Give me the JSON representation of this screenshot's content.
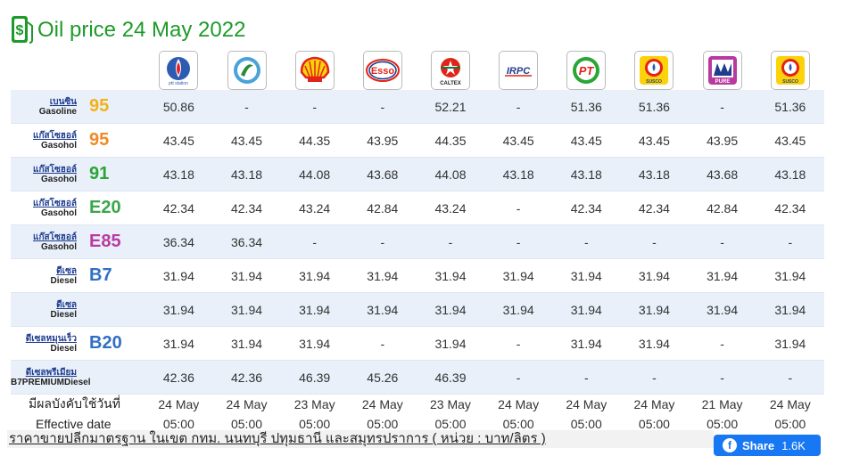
{
  "title": "Oil price 24 May 2022",
  "brands": [
    {
      "name": "ptt",
      "caption": "ptt station"
    },
    {
      "name": "bangchak",
      "caption": ""
    },
    {
      "name": "shell",
      "caption": ""
    },
    {
      "name": "esso",
      "caption": "Esso"
    },
    {
      "name": "caltex",
      "caption": "CALTEX"
    },
    {
      "name": "irpc",
      "caption": "IRPC"
    },
    {
      "name": "pt",
      "caption": "PT"
    },
    {
      "name": "susco",
      "caption": "SUSCO"
    },
    {
      "name": "pure",
      "caption": "PURE"
    },
    {
      "name": "susco-dealers",
      "caption": "SUSCO"
    }
  ],
  "fuels": [
    {
      "thai": "เบนซิน",
      "eng": "Gasoline",
      "grade": "95",
      "grade_color": "#f2b21a",
      "prices": [
        "50.86",
        "-",
        "-",
        "-",
        "52.21",
        "-",
        "51.36",
        "51.36",
        "-",
        "51.36"
      ]
    },
    {
      "thai": "แก๊สโซฮอล์",
      "eng": "Gasohol",
      "grade": "95",
      "grade_color": "#f08a26",
      "prices": [
        "43.45",
        "43.45",
        "44.35",
        "43.95",
        "44.35",
        "43.45",
        "43.45",
        "43.45",
        "43.95",
        "43.45"
      ]
    },
    {
      "thai": "แก๊สโซฮอล์",
      "eng": "Gasohol",
      "grade": "91",
      "grade_color": "#2aa536",
      "prices": [
        "43.18",
        "43.18",
        "44.08",
        "43.68",
        "44.08",
        "43.18",
        "43.18",
        "43.18",
        "43.68",
        "43.18"
      ]
    },
    {
      "thai": "แก๊สโซฮอล์",
      "eng": "Gasohol",
      "grade": "E20",
      "grade_color": "#3aa64a",
      "prices": [
        "42.34",
        "42.34",
        "43.24",
        "42.84",
        "43.24",
        "-",
        "42.34",
        "42.34",
        "42.84",
        "42.34"
      ]
    },
    {
      "thai": "แก๊สโซฮอล์",
      "eng": "Gasohol",
      "grade": "E85",
      "grade_color": "#b83aa1",
      "prices": [
        "36.34",
        "36.34",
        "-",
        "-",
        "-",
        "-",
        "-",
        "-",
        "-",
        "-"
      ]
    },
    {
      "thai": "ดีเซล",
      "eng": "Diesel",
      "grade": "B7",
      "grade_color": "#2f6fc4",
      "prices": [
        "31.94",
        "31.94",
        "31.94",
        "31.94",
        "31.94",
        "31.94",
        "31.94",
        "31.94",
        "31.94",
        "31.94"
      ]
    },
    {
      "thai": "ดีเซล",
      "eng": "Diesel",
      "grade": "",
      "grade_color": "#2f6fc4",
      "prices": [
        "31.94",
        "31.94",
        "31.94",
        "31.94",
        "31.94",
        "31.94",
        "31.94",
        "31.94",
        "31.94",
        "31.94"
      ]
    },
    {
      "thai": "ดีเซลหมุนเร็ว",
      "eng": "Diesel",
      "grade": "B20",
      "grade_color": "#2f6fc4",
      "prices": [
        "31.94",
        "31.94",
        "31.94",
        "-",
        "31.94",
        "-",
        "31.94",
        "31.94",
        "-",
        "31.94"
      ]
    },
    {
      "thai": "ดีเซลพรีเมียม",
      "eng": "B7PREMIUMDiesel",
      "grade": "",
      "grade_color": "#2f6fc4",
      "prices": [
        "42.36",
        "42.36",
        "46.39",
        "45.26",
        "46.39",
        "-",
        "-",
        "-",
        "-",
        "-"
      ]
    }
  ],
  "effective": {
    "label_thai": "มีผลบังคับใช้วันที่",
    "label_eng": "Effective date",
    "dates": [
      "24 May",
      "24 May",
      "23 May",
      "24 May",
      "23 May",
      "24 May",
      "24 May",
      "24 May",
      "21 May",
      "24 May"
    ],
    "times": [
      "05:00",
      "05:00",
      "05:00",
      "05:00",
      "05:00",
      "05:00",
      "05:00",
      "05:00",
      "05:00",
      "05:00"
    ]
  },
  "footer": "ราคาขายปลีกมาตรฐาน ในเขต กทม. นนทบุรี ปทุมธานี และสมุทรปราการ ( หน่วย : บาท/ลิตร )",
  "share": {
    "label": "Share",
    "count": "1.6K"
  }
}
